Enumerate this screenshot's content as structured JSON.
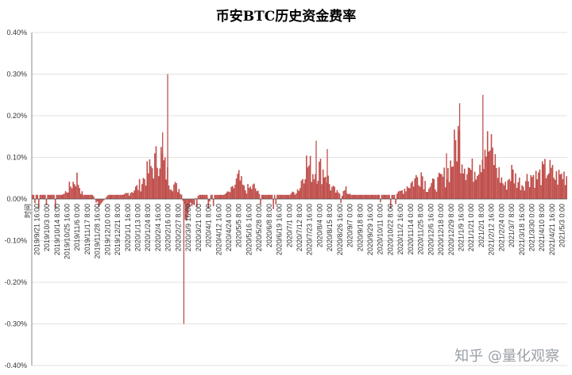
{
  "chart_data": {
    "type": "bar",
    "title": "币安BTC历史资金费率",
    "x_axis_caption": "时间",
    "ylim": [
      -0.004,
      0.004
    ],
    "y_ticks": [
      0.004,
      0.003,
      0.002,
      0.001,
      0.0,
      -0.001,
      -0.002,
      -0.003,
      -0.004
    ],
    "y_tick_labels": [
      "0.40%",
      "0.30%",
      "0.20%",
      "0.10%",
      "0.00%",
      "-0.10%",
      "-0.20%",
      "-0.30%",
      "-0.40%"
    ],
    "x_tick_labels": [
      "2019/9/21 16:00",
      "2019/10/3 0:00",
      "2019/10/14 8:00",
      "2019/10/25 16:00",
      "2019/11/6 0:00",
      "2019/11/17 8:00",
      "2019/11/28 16:00",
      "2019/12/10 0:00",
      "2019/12/21 8:00",
      "2020/1/1 16:00",
      "2020/1/13 0:00",
      "2020/1/24 8:00",
      "2020/2/4 16:00",
      "2020/2/16 0:00",
      "2020/2/27 8:00",
      "2020/3/9 16:00",
      "2020/3/21 0:00",
      "2020/4/1 8:00",
      "2020/4/12 16:00",
      "2020/4/24 0:00",
      "2020/5/5 8:00",
      "2020/5/16 16:00",
      "2020/5/28 0:00",
      "2020/6/8 8:00",
      "2020/6/19 16:00",
      "2020/7/1 0:00",
      "2020/7/12 8:00",
      "2020/7/23 16:00",
      "2020/8/4 0:00",
      "2020/8/15 8:00",
      "2020/8/26 16:00",
      "2020/9/7 0:00",
      "2020/9/18 8:00",
      "2020/9/29 16:00",
      "2020/10/11 0:00",
      "2020/10/22 8:00",
      "2020/11/2 16:00",
      "2020/11/14 0:00",
      "2020/11/25 8:00",
      "2020/12/6 16:00",
      "2020/12/18 0:00",
      "2020/12/29 8:00",
      "2021/1/9 16:00",
      "2021/1/21 0:00",
      "2021/2/1 8:00",
      "2021/2/12 16:00",
      "2021/2/24 0:00",
      "2021/3/7 8:00",
      "2021/3/18 16:00",
      "2021/3/30 0:00",
      "2021/4/10 8:00",
      "2021/4/21 16:00",
      "2021/5/3 0:00"
    ],
    "series": [
      {
        "color": "#c0504d",
        "anchors": [
          [
            0,
            0.0001
          ],
          [
            3,
            0.0001
          ],
          [
            4.4,
            0.0007
          ],
          [
            5,
            0.0001
          ],
          [
            6,
            0.0001
          ],
          [
            6.5,
            -0.0002
          ],
          [
            7.5,
            0.0001
          ],
          [
            9,
            0.0001
          ],
          [
            10.5,
            0.0004
          ],
          [
            11.5,
            0.0009
          ],
          [
            12.2,
            0.0012
          ],
          [
            12.6,
            0.0016
          ],
          [
            13,
            0.0011
          ],
          [
            13.6,
            0.0006
          ],
          [
            14.2,
            0.0004
          ],
          [
            14.7,
            0.0003
          ],
          [
            15.2,
            -0.0006
          ],
          [
            15.6,
            -0.0001
          ],
          [
            16.5,
            0.0001
          ],
          [
            19,
            0.0001
          ],
          [
            19.8,
            0.0003
          ],
          [
            20.4,
            0.0007
          ],
          [
            21,
            0.0003
          ],
          [
            22,
            0.0004
          ],
          [
            22.5,
            0.0001
          ],
          [
            25.5,
            0.0001
          ],
          [
            26.5,
            0.0004
          ],
          [
            27,
            0.0012
          ],
          [
            27.8,
            0.0009
          ],
          [
            28.4,
            0.001
          ],
          [
            29,
            0.0009
          ],
          [
            29.5,
            0.0004
          ],
          [
            30.5,
            0.0001
          ],
          [
            31,
            0.0003
          ],
          [
            31.5,
            0.0001
          ],
          [
            36,
            0.0001
          ],
          [
            37,
            0.0004
          ],
          [
            37.8,
            0.0006
          ],
          [
            38.5,
            0.0009
          ],
          [
            39,
            0.0004
          ],
          [
            40,
            0.0005
          ],
          [
            41,
            0.0008
          ],
          [
            41.6,
            0.0013
          ],
          [
            42.1,
            0.0021
          ],
          [
            42.8,
            0.0012
          ],
          [
            43.5,
            0.0009
          ],
          [
            44.2,
            0.0013
          ],
          [
            44.8,
            0.0018
          ],
          [
            45.5,
            0.0015
          ],
          [
            46.2,
            0.0008
          ],
          [
            46.8,
            0.0004
          ],
          [
            47.4,
            0.0009
          ],
          [
            48,
            0.0006
          ],
          [
            48.5,
            0.0005
          ],
          [
            49.3,
            0.0008
          ],
          [
            50,
            0.0007
          ],
          [
            51,
            0.001
          ],
          [
            51.8,
            0.0007
          ],
          [
            52.6,
            0.0008
          ]
        ],
        "spikes": [
          [
            13.4,
            0.003
          ],
          [
            15.0,
            -0.003
          ],
          [
            42.3,
            0.0023
          ],
          [
            44.6,
            0.0025
          ],
          [
            12.9,
            0.0016
          ],
          [
            28.1,
            0.0014
          ],
          [
            29.2,
            0.0012
          ],
          [
            41.0,
            0.0011
          ]
        ]
      }
    ]
  },
  "watermark": "知乎 @量化观察"
}
